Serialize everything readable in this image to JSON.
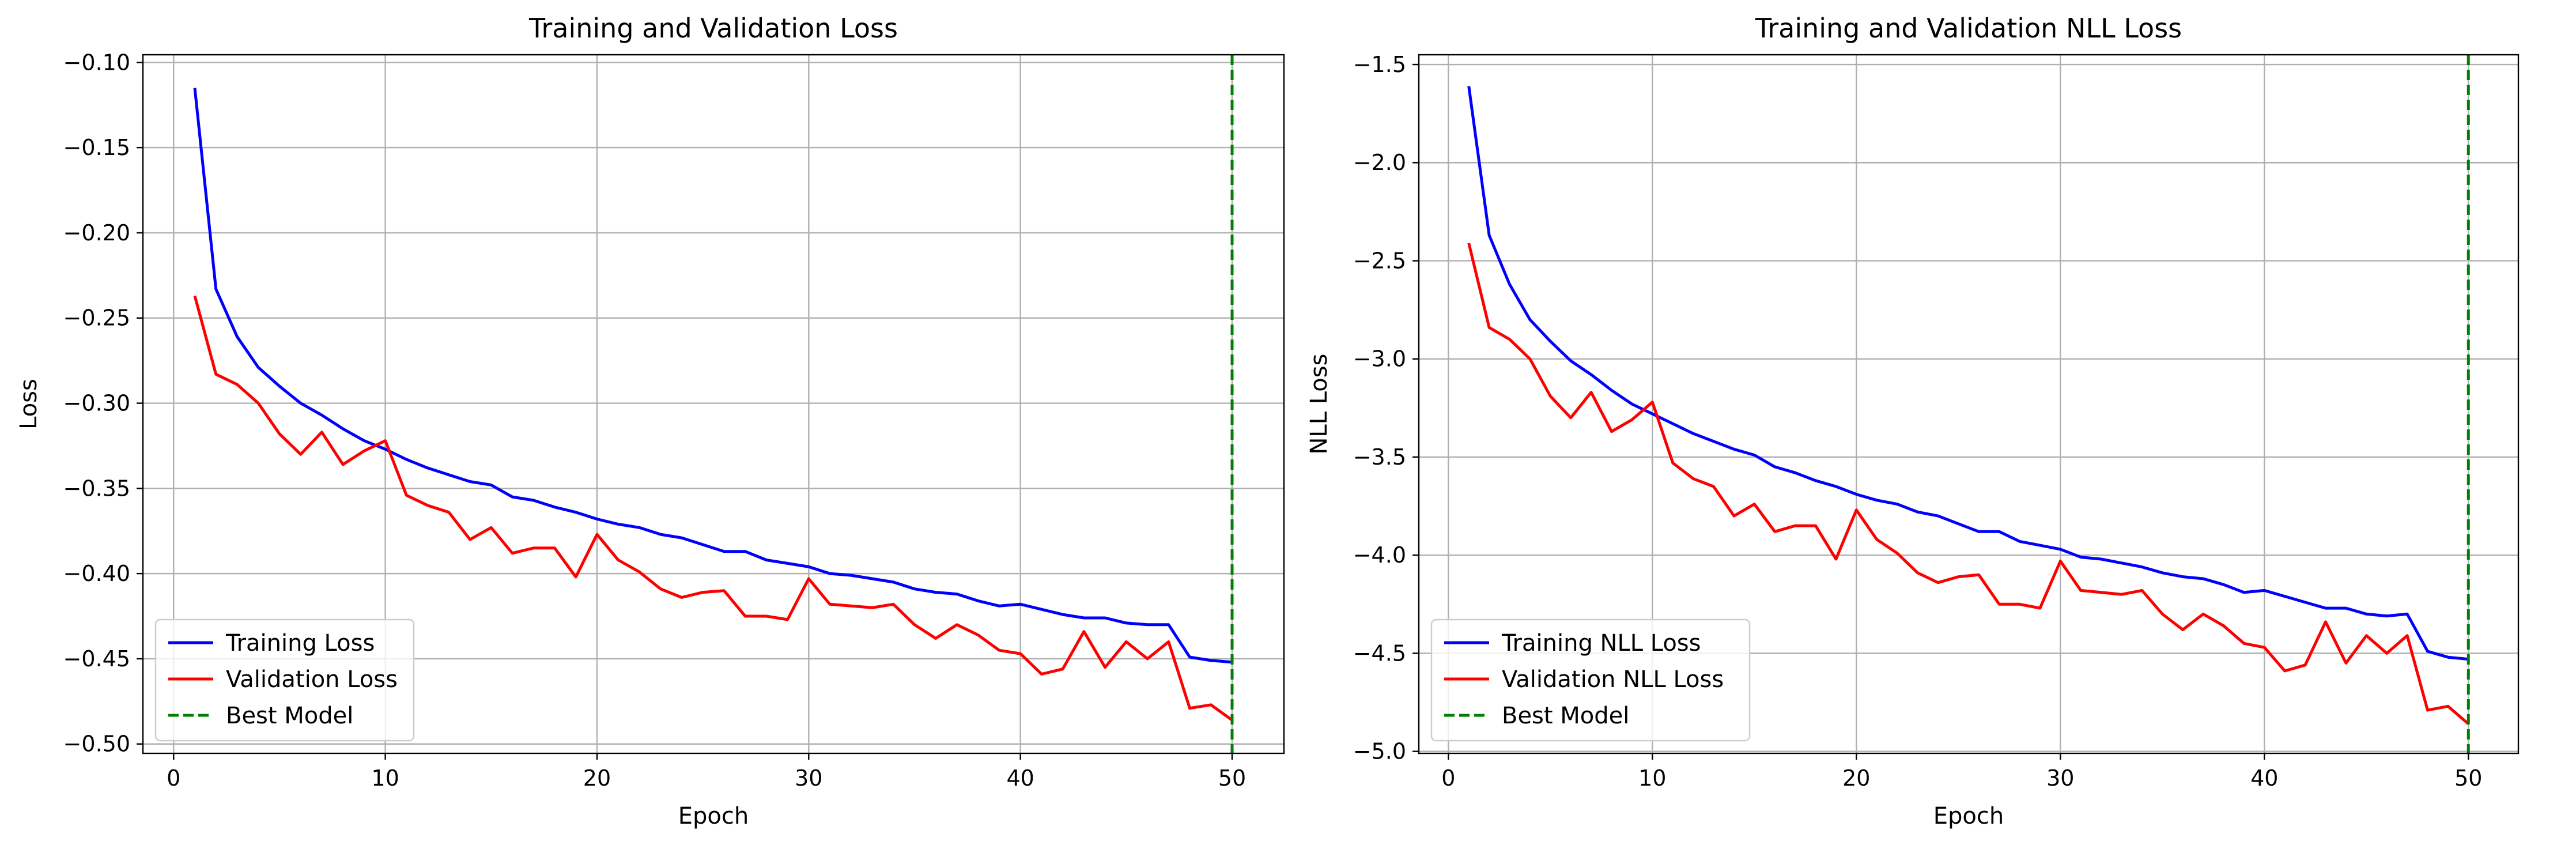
{
  "chart_data": [
    {
      "type": "line",
      "title": "Training and Validation Loss",
      "xlabel": "Epoch",
      "ylabel": "Loss",
      "xlim": [
        -1.45,
        52.45
      ],
      "ylim": [
        -0.5055,
        -0.0955
      ],
      "xticks": [
        0,
        10,
        20,
        30,
        40,
        50
      ],
      "yticks": [
        -0.5,
        -0.45,
        -0.4,
        -0.35,
        -0.3,
        -0.25,
        -0.2,
        -0.15,
        -0.1
      ],
      "grid": true,
      "legend_position": "lower-left",
      "x": [
        1,
        2,
        3,
        4,
        5,
        6,
        7,
        8,
        9,
        10,
        11,
        12,
        13,
        14,
        15,
        16,
        17,
        18,
        19,
        20,
        21,
        22,
        23,
        24,
        25,
        26,
        27,
        28,
        29,
        30,
        31,
        32,
        33,
        34,
        35,
        36,
        37,
        38,
        39,
        40,
        41,
        42,
        43,
        44,
        45,
        46,
        47,
        48,
        49,
        50
      ],
      "series": [
        {
          "name": "Training Loss",
          "color": "#0000ff",
          "style": "solid",
          "values": [
            -0.115,
            -0.233,
            -0.261,
            -0.279,
            -0.29,
            -0.3,
            -0.307,
            -0.315,
            -0.322,
            -0.327,
            -0.333,
            -0.338,
            -0.342,
            -0.346,
            -0.348,
            -0.355,
            -0.357,
            -0.361,
            -0.364,
            -0.368,
            -0.371,
            -0.373,
            -0.377,
            -0.379,
            -0.383,
            -0.387,
            -0.387,
            -0.392,
            -0.394,
            -0.396,
            -0.4,
            -0.401,
            -0.403,
            -0.405,
            -0.409,
            -0.411,
            -0.412,
            -0.416,
            -0.419,
            -0.418,
            -0.421,
            -0.424,
            -0.426,
            -0.426,
            -0.429,
            -0.43,
            -0.43,
            -0.449,
            -0.451,
            -0.452
          ]
        },
        {
          "name": "Validation Loss",
          "color": "#ff0000",
          "style": "solid",
          "values": [
            -0.237,
            -0.283,
            -0.289,
            -0.3,
            -0.318,
            -0.33,
            -0.317,
            -0.336,
            -0.328,
            -0.322,
            -0.354,
            -0.36,
            -0.364,
            -0.38,
            -0.373,
            -0.388,
            -0.385,
            -0.385,
            -0.402,
            -0.377,
            -0.392,
            -0.399,
            -0.409,
            -0.414,
            -0.411,
            -0.41,
            -0.425,
            -0.425,
            -0.427,
            -0.403,
            -0.418,
            -0.419,
            -0.42,
            -0.418,
            -0.43,
            -0.438,
            -0.43,
            -0.436,
            -0.445,
            -0.447,
            -0.459,
            -0.456,
            -0.434,
            -0.455,
            -0.44,
            -0.45,
            -0.44,
            -0.479,
            -0.477,
            -0.486
          ]
        }
      ],
      "vlines": [
        {
          "name": "Best Model",
          "x": 50,
          "color": "#008000",
          "style": "dashed"
        }
      ]
    },
    {
      "type": "line",
      "title": "Training and Validation NLL Loss",
      "xlabel": "Epoch",
      "ylabel": "NLL Loss",
      "xlim": [
        -1.45,
        52.45
      ],
      "ylim": [
        -5.01,
        -1.45
      ],
      "xticks": [
        0,
        10,
        20,
        30,
        40,
        50
      ],
      "yticks": [
        -5.0,
        -4.5,
        -4.0,
        -3.5,
        -3.0,
        -2.5,
        -2.0,
        -1.5
      ],
      "grid": true,
      "legend_position": "lower-left",
      "x": [
        1,
        2,
        3,
        4,
        5,
        6,
        7,
        8,
        9,
        10,
        11,
        12,
        13,
        14,
        15,
        16,
        17,
        18,
        19,
        20,
        21,
        22,
        23,
        24,
        25,
        26,
        27,
        28,
        29,
        30,
        31,
        32,
        33,
        34,
        35,
        36,
        37,
        38,
        39,
        40,
        41,
        42,
        43,
        44,
        45,
        46,
        47,
        48,
        49,
        50
      ],
      "series": [
        {
          "name": "Training NLL Loss",
          "color": "#0000ff",
          "style": "solid",
          "values": [
            -1.61,
            -2.37,
            -2.62,
            -2.8,
            -2.91,
            -3.01,
            -3.08,
            -3.16,
            -3.23,
            -3.28,
            -3.33,
            -3.38,
            -3.42,
            -3.46,
            -3.49,
            -3.55,
            -3.58,
            -3.62,
            -3.65,
            -3.69,
            -3.72,
            -3.74,
            -3.78,
            -3.8,
            -3.84,
            -3.88,
            -3.88,
            -3.93,
            -3.95,
            -3.97,
            -4.01,
            -4.02,
            -4.04,
            -4.06,
            -4.09,
            -4.11,
            -4.12,
            -4.15,
            -4.19,
            -4.18,
            -4.21,
            -4.24,
            -4.27,
            -4.27,
            -4.3,
            -4.31,
            -4.3,
            -4.49,
            -4.52,
            -4.53
          ]
        },
        {
          "name": "Validation NLL Loss",
          "color": "#ff0000",
          "style": "solid",
          "values": [
            -2.41,
            -2.84,
            -2.9,
            -3.0,
            -3.19,
            -3.3,
            -3.17,
            -3.37,
            -3.31,
            -3.22,
            -3.53,
            -3.61,
            -3.65,
            -3.8,
            -3.74,
            -3.88,
            -3.85,
            -3.85,
            -4.02,
            -3.77,
            -3.92,
            -3.99,
            -4.09,
            -4.14,
            -4.11,
            -4.1,
            -4.25,
            -4.25,
            -4.27,
            -4.03,
            -4.18,
            -4.19,
            -4.2,
            -4.18,
            -4.3,
            -4.38,
            -4.3,
            -4.36,
            -4.45,
            -4.47,
            -4.59,
            -4.56,
            -4.34,
            -4.55,
            -4.41,
            -4.5,
            -4.41,
            -4.79,
            -4.77,
            -4.86
          ]
        }
      ],
      "vlines": [
        {
          "name": "Best Model",
          "x": 50,
          "color": "#008000",
          "style": "dashed"
        }
      ]
    }
  ]
}
